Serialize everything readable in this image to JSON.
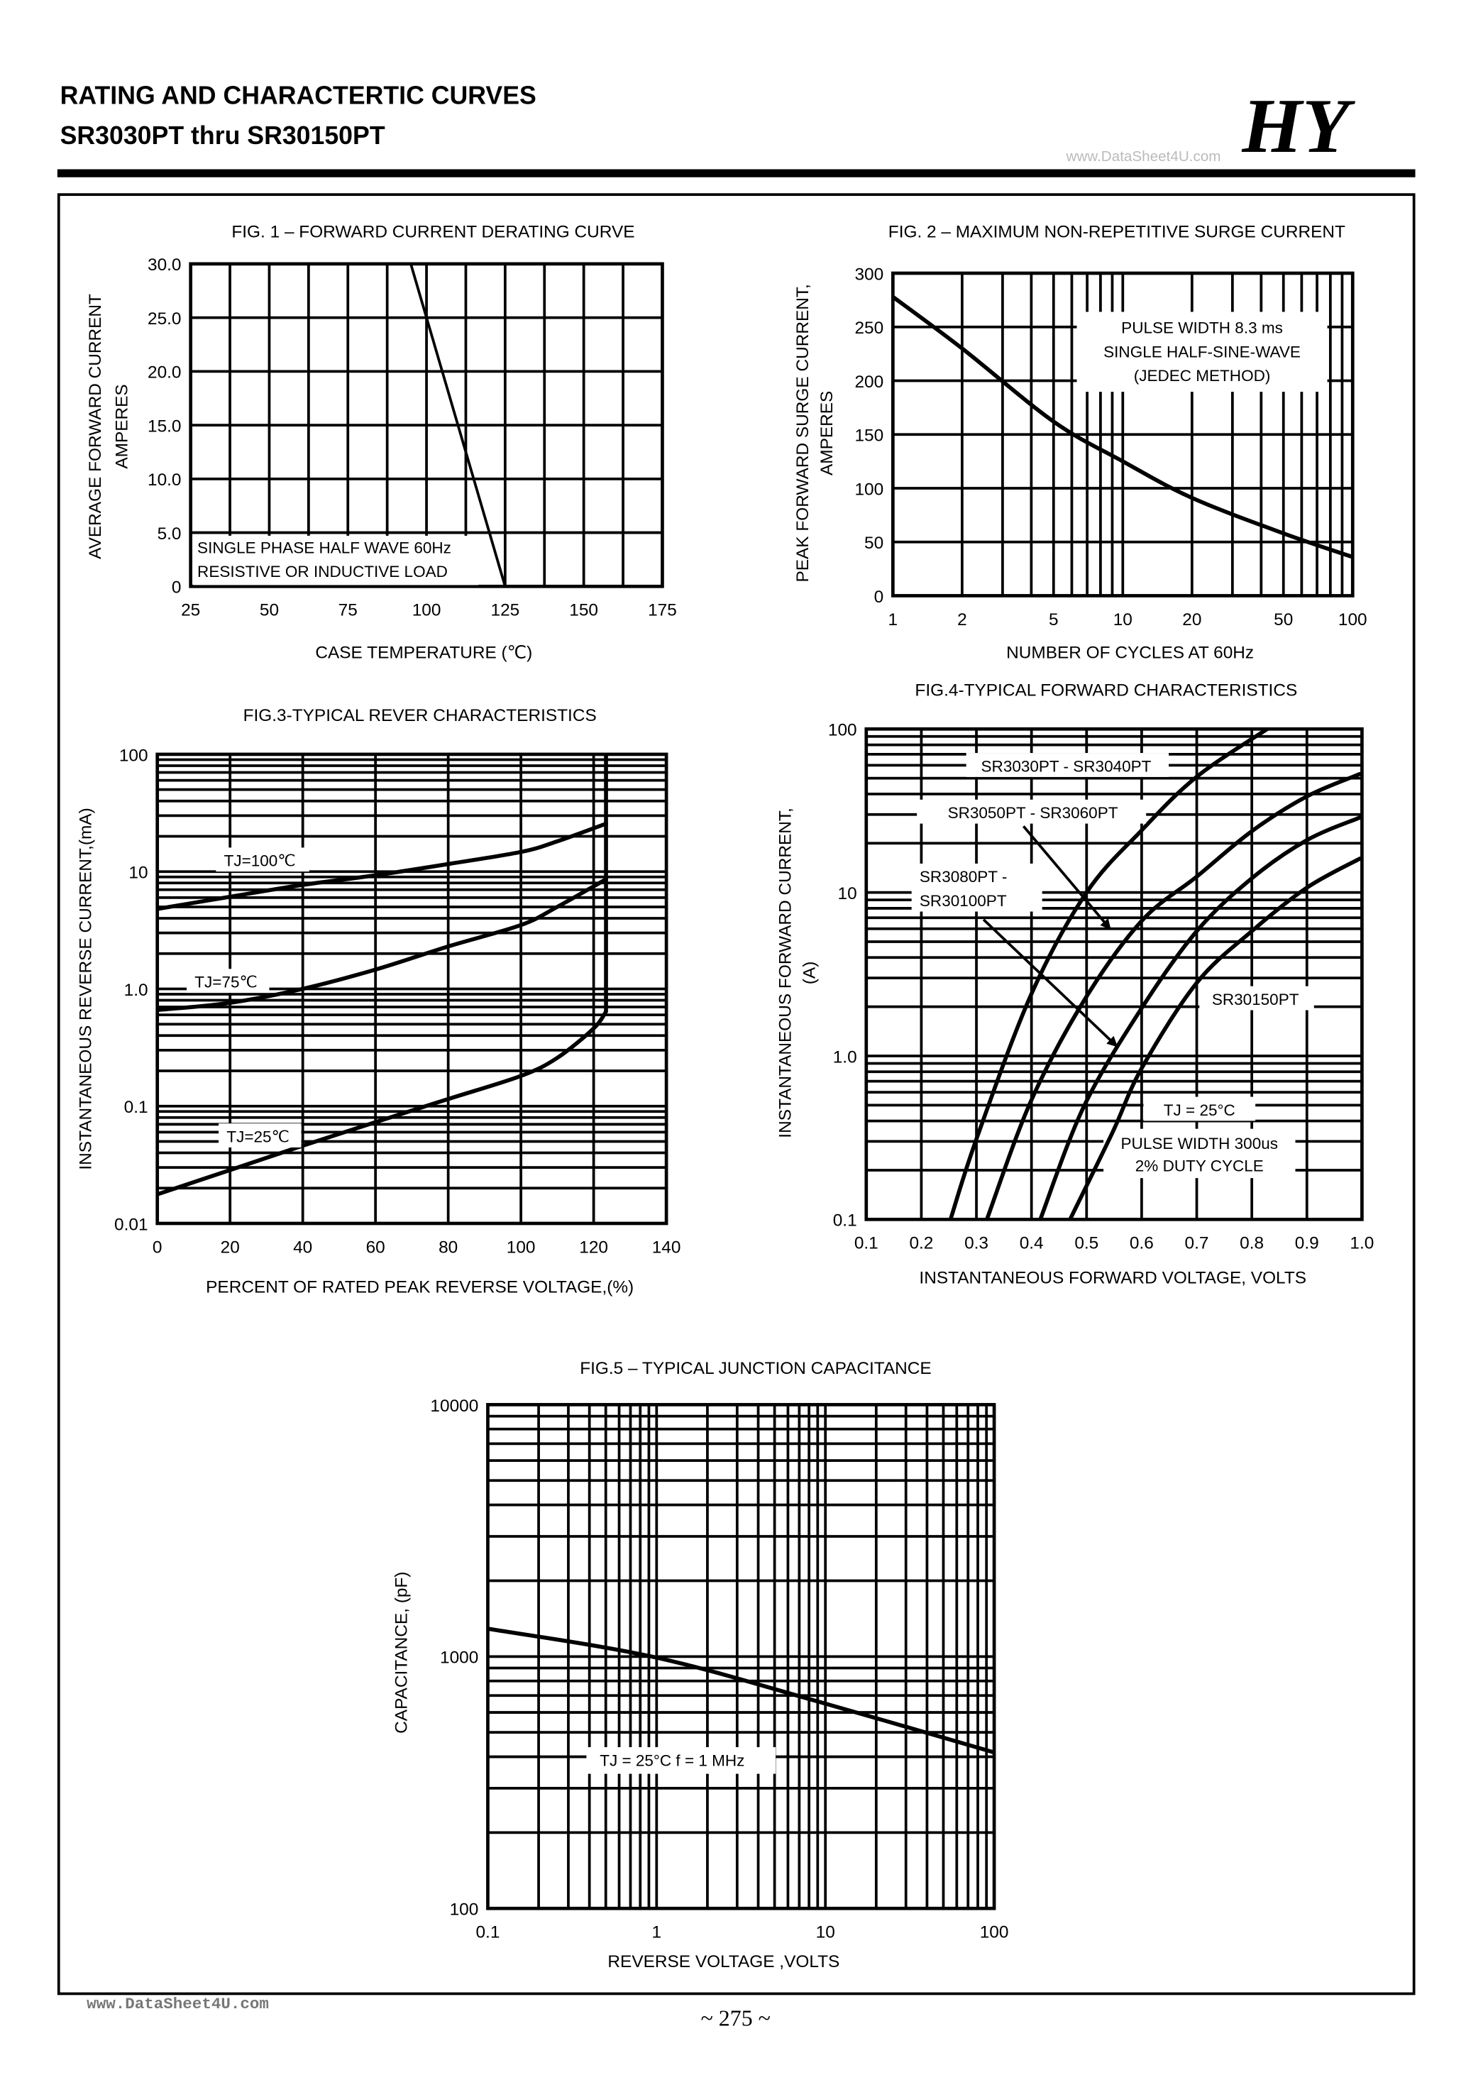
{
  "header": {
    "title": "RATING AND CHARACTERTIC CURVES",
    "subtitle": "SR3030PT thru SR30150PT",
    "logo": "HY",
    "watermark": "www.DataSheet4U.com"
  },
  "footer": {
    "watermark": "www.DataSheet4U.com",
    "page": "~ 275 ~"
  },
  "chart_data": [
    {
      "type": "line",
      "title": "FIG. 1 – FORWARD CURRENT DERATING CURVE",
      "xlabel": "CASE  TEMPERATURE (℃)",
      "ylabel": [
        "AVERAGE FORWARD CURRENT",
        "AMPERES"
      ],
      "x_scale": "linear",
      "y_scale": "linear",
      "xlim": [
        25,
        175
      ],
      "ylim": [
        0,
        30
      ],
      "xticks": [
        25,
        50,
        75,
        100,
        125,
        150,
        175
      ],
      "xtick_labels": [
        "25",
        "50",
        "75",
        "100",
        "125",
        "150",
        "175"
      ],
      "yticks": [
        0,
        5,
        10,
        15,
        20,
        25,
        30
      ],
      "ytick_labels": [
        "0",
        "5.0",
        "10.0",
        "15.0",
        "20.0",
        "25.0",
        "30.0"
      ],
      "grid": true,
      "series": [
        {
          "x": [
            25,
            95,
            125
          ],
          "y": [
            30,
            30,
            0
          ]
        }
      ],
      "annotations": [
        "SINGLE PHASE HALF WAVE 60Hz",
        "RESISTIVE OR INDUCTIVE LOAD"
      ]
    },
    {
      "type": "line",
      "title": "FIG. 2 – MAXIMUM NON-REPETITIVE SURGE CURRENT",
      "xlabel": "NUMBER OF CYCLES AT 60Hz",
      "ylabel": [
        "PEAK FORWARD SURGE CURRENT,",
        "AMPERES"
      ],
      "x_scale": "log",
      "y_scale": "linear",
      "xlim": [
        1,
        100
      ],
      "ylim": [
        0,
        300
      ],
      "xticks": [
        1,
        2,
        5,
        10,
        20,
        50,
        100
      ],
      "xtick_labels": [
        "1",
        "2",
        "5",
        "10",
        "20",
        "50",
        "100"
      ],
      "yticks": [
        0,
        50,
        100,
        150,
        200,
        250,
        300
      ],
      "ytick_labels": [
        "0",
        "50",
        "100",
        "150",
        "200",
        "250",
        "300"
      ],
      "grid": true,
      "series": [
        {
          "x": [
            1,
            2,
            5,
            10,
            20,
            50,
            100
          ],
          "y": [
            278,
            230,
            162,
            125,
            91,
            58,
            36
          ]
        }
      ],
      "annotations": [
        "PULSE WIDTH 8.3 ms",
        "SINGLE HALF-SINE-WAVE",
        "(JEDEC METHOD)"
      ]
    },
    {
      "type": "line",
      "title": "FIG.3-TYPICAL REVER CHARACTERISTICS",
      "xlabel": "PERCENT OF RATED PEAK REVERSE VOLTAGE,(%)",
      "ylabel": [
        "INSTANTANEOUS REVERSE CURRENT,(mA)"
      ],
      "x_scale": "linear",
      "y_scale": "log",
      "xlim": [
        0,
        140
      ],
      "ylim": [
        0.01,
        100
      ],
      "xticks": [
        0,
        20,
        40,
        60,
        80,
        100,
        120,
        140
      ],
      "xtick_labels": [
        "0",
        "20",
        "40",
        "60",
        "80",
        "100",
        "120",
        "140"
      ],
      "yticks": [
        0.01,
        0.1,
        1,
        10,
        100
      ],
      "ytick_labels": [
        "0.01",
        "0.1",
        "1.0",
        "10",
        "100"
      ],
      "grid": true,
      "breakdown_x": 123.4,
      "series": [
        {
          "name": "TJ=100℃",
          "x": [
            0,
            20,
            40,
            60,
            80,
            100,
            110,
            123.4
          ],
          "y": [
            4.8,
            6.1,
            7.7,
            9.3,
            11.6,
            14.7,
            18.1,
            25.6
          ]
        },
        {
          "name": "TJ=75℃",
          "x": [
            0,
            20,
            40,
            60,
            80,
            100,
            110,
            123.4
          ],
          "y": [
            0.66,
            0.76,
            1.0,
            1.46,
            2.3,
            3.5,
            5.0,
            8.6
          ]
        },
        {
          "name": "TJ=25℃",
          "x": [
            0,
            20,
            40,
            60,
            80,
            100,
            110,
            120,
            123.4
          ],
          "y": [
            0.0177,
            0.0285,
            0.046,
            0.073,
            0.115,
            0.181,
            0.258,
            0.46,
            0.64
          ]
        }
      ]
    },
    {
      "type": "line",
      "title": "FIG.4-TYPICAL FORWARD CHARACTERISTICS",
      "xlabel": "INSTANTANEOUS FORWARD VOLTAGE, VOLTS",
      "ylabel": [
        "INSTANTANEOUS FORWARD CURRENT,",
        "(A)"
      ],
      "x_scale": "linear",
      "y_scale": "log",
      "xlim": [
        0.1,
        1.0
      ],
      "ylim": [
        0.1,
        100
      ],
      "xticks": [
        0.1,
        0.2,
        0.3,
        0.4,
        0.5,
        0.6,
        0.7,
        0.8,
        0.9,
        1.0
      ],
      "xtick_labels": [
        "0.1",
        "0.2",
        "0.3",
        "0.4",
        "0.5",
        "0.6",
        "0.7",
        "0.8",
        "0.9",
        "1.0"
      ],
      "yticks": [
        0.1,
        1,
        10,
        100
      ],
      "ytick_labels": [
        "0.1",
        "1.0",
        "10",
        "100"
      ],
      "grid": true,
      "series": [
        {
          "name": "SR3030PT - SR3040PT",
          "x": [
            0.253,
            0.3,
            0.4,
            0.5,
            0.6,
            0.7,
            0.828
          ],
          "y": [
            0.1,
            0.31,
            2.4,
            10,
            24,
            51,
            100
          ]
        },
        {
          "name": "SR3050PT - SR3060PT",
          "x": [
            0.319,
            0.398,
            0.495,
            0.6,
            0.7,
            0.8,
            0.9,
            0.996
          ],
          "y": [
            0.1,
            0.52,
            2.17,
            6.7,
            12.5,
            23.7,
            38.7,
            53
          ]
        },
        {
          "name_lines": [
            "SR3080PT -",
            "SR30100PT"
          ],
          "x": [
            0.416,
            0.495,
            0.6,
            0.7,
            0.8,
            0.9,
            0.996
          ],
          "y": [
            0.1,
            0.49,
            1.96,
            5.8,
            12.2,
            20.9,
            28.7
          ]
        },
        {
          "name": "SR30150PT",
          "x": [
            0.47,
            0.547,
            0.6,
            0.7,
            0.8,
            0.9,
            0.996
          ],
          "y": [
            0.1,
            0.34,
            0.84,
            2.8,
            5.8,
            10.7,
            16.1
          ]
        }
      ],
      "annotations": [
        "TJ = 25°C",
        "PULSE WIDTH 300us",
        "2% DUTY CYCLE"
      ]
    },
    {
      "type": "line",
      "title": "FIG.5 – TYPICAL JUNCTION CAPACITANCE",
      "xlabel": "REVERSE VOLTAGE ,VOLTS",
      "ylabel": [
        "CAPACITANCE, (pF)"
      ],
      "x_scale": "log",
      "y_scale": "log",
      "xlim": [
        0.1,
        100
      ],
      "ylim": [
        100,
        10000
      ],
      "xticks": [
        0.1,
        1,
        10,
        100
      ],
      "xtick_labels": [
        "0.1",
        "1",
        "10",
        "100"
      ],
      "yticks": [
        100,
        1000,
        10000
      ],
      "ytick_labels": [
        "100",
        "1000",
        "10000"
      ],
      "grid": true,
      "series": [
        {
          "x": [
            0.1,
            1,
            10,
            100
          ],
          "y": [
            1290,
            990,
            650,
            416
          ]
        }
      ],
      "annotations": [
        "TJ = 25°C  f = 1 MHz"
      ]
    }
  ]
}
